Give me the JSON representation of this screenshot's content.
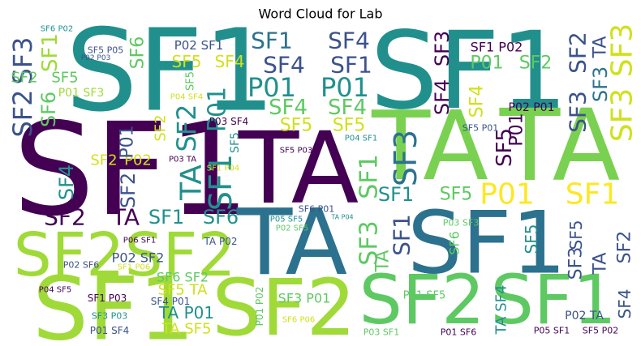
{
  "chart_data": {
    "type": "wordcloud",
    "title": "Word Cloud for Lab",
    "words": [
      {
        "text": "SF1",
        "color": "#21908d"
      },
      {
        "text": "SF1",
        "color": "#21908d"
      },
      {
        "text": "SF1",
        "color": "#440154"
      },
      {
        "text": "TA",
        "color": "#440154"
      },
      {
        "text": "TA",
        "color": "#7ad151"
      },
      {
        "text": "TA",
        "color": "#7ad151"
      },
      {
        "text": "TA",
        "color": "#2c728e"
      },
      {
        "text": "SF1",
        "color": "#2c728e"
      },
      {
        "text": "SF2",
        "color": "#a0da39"
      },
      {
        "text": "SF2",
        "color": "#a0da39"
      },
      {
        "text": "SF2",
        "color": "#a0da39"
      },
      {
        "text": "SF1",
        "color": "#a0da39"
      },
      {
        "text": "SF2",
        "color": "#5ec962"
      },
      {
        "text": "SF1",
        "color": "#5ec962"
      },
      {
        "text": "SF1",
        "color": "#2c728e"
      },
      {
        "text": "SF4",
        "color": "#3b528b"
      },
      {
        "text": "SF4",
        "color": "#3b528b"
      },
      {
        "text": "SF1",
        "color": "#3b528b"
      },
      {
        "text": "P01",
        "color": "#21908d"
      },
      {
        "text": "P01",
        "color": "#21908d"
      },
      {
        "text": "SF4",
        "color": "#5ec962"
      },
      {
        "text": "SF4",
        "color": "#5ec962"
      },
      {
        "text": "SF5",
        "color": "#d0e11c"
      },
      {
        "text": "SF5",
        "color": "#d0e11c"
      },
      {
        "text": "SF5",
        "color": "#d0e11c"
      },
      {
        "text": "SF4",
        "color": "#d0e11c"
      },
      {
        "text": "P02 SF1",
        "color": "#3b528b"
      },
      {
        "text": "SF3",
        "color": "#3b528b"
      },
      {
        "text": "SF2",
        "color": "#3b528b"
      },
      {
        "text": "SF1",
        "color": "#a0da39"
      },
      {
        "text": "SF2",
        "color": "#5ec962"
      },
      {
        "text": "SF5",
        "color": "#5ec962"
      },
      {
        "text": "SF6",
        "color": "#5ec962"
      },
      {
        "text": "P01 SF3",
        "color": "#a0da39"
      },
      {
        "text": "SF6",
        "color": "#5ec962"
      },
      {
        "text": "SF2",
        "color": "#21908d"
      },
      {
        "text": "P01",
        "color": "#21908d"
      },
      {
        "text": "SF1",
        "color": "#21908d"
      },
      {
        "text": "TA",
        "color": "#21908d"
      },
      {
        "text": "SF2",
        "color": "#d0e11c"
      },
      {
        "text": "P02",
        "color": "#d0e11c"
      },
      {
        "text": "SF2",
        "color": "#3b528b"
      },
      {
        "text": "P01",
        "color": "#3b528b"
      },
      {
        "text": "SF4",
        "color": "#21908d"
      },
      {
        "text": "SF2",
        "color": "#440154"
      },
      {
        "text": "TA",
        "color": "#440154"
      },
      {
        "text": "SF1",
        "color": "#21908d"
      },
      {
        "text": "SF6",
        "color": "#21908d"
      },
      {
        "text": "SF1",
        "color": "#21908d"
      },
      {
        "text": "SF5",
        "color": "#5ec962"
      },
      {
        "text": "P01",
        "color": "#fde725"
      },
      {
        "text": "SF1",
        "color": "#fde725"
      },
      {
        "text": "SF3",
        "color": "#2c728e"
      },
      {
        "text": "SF1",
        "color": "#5ec962"
      },
      {
        "text": "SF4",
        "color": "#440154"
      },
      {
        "text": "SF3",
        "color": "#440154"
      },
      {
        "text": "SF1 P02",
        "color": "#440154"
      },
      {
        "text": "P01",
        "color": "#5ec962"
      },
      {
        "text": "SF2",
        "color": "#5ec962"
      },
      {
        "text": "SF2",
        "color": "#3b528b"
      },
      {
        "text": "TA",
        "color": "#3b528b"
      },
      {
        "text": "SF3",
        "color": "#d0e11c"
      },
      {
        "text": "SF3",
        "color": "#3b528b"
      },
      {
        "text": "SF3",
        "color": "#d0e11c"
      },
      {
        "text": "SF3",
        "color": "#2c728e"
      },
      {
        "text": "SF4",
        "color": "#d0e11c"
      },
      {
        "text": "SF5",
        "color": "#440154"
      },
      {
        "text": "P01",
        "color": "#440154"
      },
      {
        "text": "P02 P01",
        "color": "#440154"
      },
      {
        "text": "SF5 P01",
        "color": "#3b528b"
      },
      {
        "text": "SF3",
        "color": "#5ec962"
      },
      {
        "text": "SF1",
        "color": "#3b528b"
      },
      {
        "text": "TA",
        "color": "#5ec962"
      },
      {
        "text": "P03 SF3",
        "color": "#5ec962"
      },
      {
        "text": "SF6",
        "color": "#5ec962"
      },
      {
        "text": "SF5",
        "color": "#21908d"
      },
      {
        "text": "SF5",
        "color": "#3b528b"
      },
      {
        "text": "SF3",
        "color": "#3b528b"
      },
      {
        "text": "TA",
        "color": "#3b528b"
      },
      {
        "text": "SF2",
        "color": "#3b528b"
      },
      {
        "text": "SF4",
        "color": "#3b528b"
      },
      {
        "text": "P02 TA",
        "color": "#3b528b"
      },
      {
        "text": "P05 SF1",
        "color": "#440154"
      },
      {
        "text": "SF5 P02",
        "color": "#440154"
      },
      {
        "text": "P01 SF5",
        "color": "#5ec962"
      },
      {
        "text": "SF3 P01",
        "color": "#5ec962"
      },
      {
        "text": "P01 P02",
        "color": "#5ec962"
      },
      {
        "text": "SF6 P06",
        "color": "#d0e11c"
      },
      {
        "text": "P03 SF1",
        "color": "#5ec962"
      },
      {
        "text": "P01 SF6",
        "color": "#440154"
      },
      {
        "text": "TA SF4",
        "color": "#21908d"
      },
      {
        "text": "SF6 SF2",
        "color": "#5ec962"
      },
      {
        "text": "SF5 TA",
        "color": "#d0e11c"
      },
      {
        "text": "TA P01",
        "color": "#21908d"
      },
      {
        "text": "TA SF5",
        "color": "#d0e11c"
      },
      {
        "text": "SF4 P01",
        "color": "#3b528b"
      },
      {
        "text": "SF1 P03",
        "color": "#440154"
      },
      {
        "text": "SF3 P03",
        "color": "#21908d"
      },
      {
        "text": "P01 SF4",
        "color": "#3b528b"
      },
      {
        "text": "P04 SF5",
        "color": "#440154"
      },
      {
        "text": "P02 SF6",
        "color": "#3b528b"
      },
      {
        "text": "P02 SF2",
        "color": "#3b528b"
      },
      {
        "text": "SF1 P06",
        "color": "#d0e11c"
      },
      {
        "text": "P06 SF1",
        "color": "#440154"
      },
      {
        "text": "TA P02",
        "color": "#3b528b"
      },
      {
        "text": "SF6 P01",
        "color": "#3b528b"
      },
      {
        "text": "P05 SF5",
        "color": "#21908d"
      },
      {
        "text": "P02 SF5",
        "color": "#5ec962"
      },
      {
        "text": "TA P04",
        "color": "#21908d"
      },
      {
        "text": "SF5 P03",
        "color": "#440154"
      },
      {
        "text": "P04 SF1",
        "color": "#21908d"
      },
      {
        "text": "P03 TA",
        "color": "#440154"
      },
      {
        "text": "SF1 P04",
        "color": "#d0e11c"
      },
      {
        "text": "SF6 P02",
        "color": "#21908d"
      },
      {
        "text": "SF5 P05",
        "color": "#3b528b"
      },
      {
        "text": "P02 P03",
        "color": "#3b528b"
      },
      {
        "text": "SF5",
        "color": "#5ec962"
      },
      {
        "text": "P04 SF4",
        "color": "#d0e11c"
      },
      {
        "text": "P03 SF4",
        "color": "#440154"
      },
      {
        "text": "SF2",
        "color": "#d0e11c"
      },
      {
        "text": "SF5",
        "color": "#21908d"
      }
    ]
  }
}
